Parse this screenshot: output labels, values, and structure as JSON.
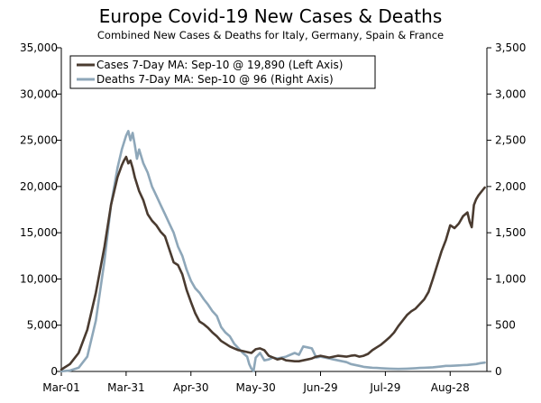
{
  "chart_data": {
    "type": "line",
    "title": "Europe Covid-19 New Cases & Deaths",
    "subtitle": "Combined New Cases & Deaths for Italy, Germany, Spain & France",
    "x_domain_days": [
      0,
      197
    ],
    "x_ticks": [
      {
        "day": 0,
        "label": "Mar-01"
      },
      {
        "day": 30,
        "label": "Mar-31"
      },
      {
        "day": 60,
        "label": "Apr-30"
      },
      {
        "day": 90,
        "label": "May-30"
      },
      {
        "day": 120,
        "label": "Jun-29"
      },
      {
        "day": 150,
        "label": "Jul-29"
      },
      {
        "day": 180,
        "label": "Aug-28"
      }
    ],
    "left_axis": {
      "ylim": [
        0,
        35000
      ],
      "ticks": [
        0,
        5000,
        10000,
        15000,
        20000,
        25000,
        30000,
        35000
      ],
      "tick_labels": [
        "0",
        "5,000",
        "10,000",
        "15,000",
        "20,000",
        "25,000",
        "30,000",
        "35,000"
      ]
    },
    "right_axis": {
      "ylim": [
        0,
        3500
      ],
      "ticks": [
        0,
        500,
        1000,
        1500,
        2000,
        2500,
        3000,
        3500
      ],
      "tick_labels": [
        "0",
        "500",
        "1,000",
        "1,500",
        "2,000",
        "2,500",
        "3,000",
        "3,500"
      ]
    },
    "legend_position": "top-left",
    "series": [
      {
        "name": "Cases 7-Day MA: Sep-10 @ 19,890 (Left Axis)",
        "axis": "left",
        "color": "#4a3b30",
        "x": [
          0,
          4,
          8,
          12,
          16,
          20,
          23,
          26,
          28,
          29,
          30,
          31,
          32,
          33,
          34,
          36,
          38,
          40,
          42,
          44,
          46,
          48,
          50,
          52,
          54,
          56,
          58,
          60,
          62,
          64,
          66,
          68,
          70,
          72,
          74,
          76,
          78,
          80,
          82,
          84,
          86,
          88,
          90,
          92,
          94,
          96,
          98,
          100,
          102,
          104,
          106,
          108,
          110,
          112,
          114,
          116,
          118,
          120,
          122,
          124,
          126,
          128,
          130,
          132,
          134,
          136,
          138,
          140,
          142,
          144,
          146,
          148,
          150,
          152,
          154,
          156,
          158,
          160,
          162,
          164,
          166,
          168,
          170,
          172,
          174,
          176,
          178,
          180,
          182,
          184,
          186,
          188,
          189,
          190,
          191,
          192,
          193,
          194,
          195,
          196
        ],
        "values": [
          200,
          800,
          2000,
          4500,
          8500,
          13500,
          18000,
          21000,
          22300,
          22800,
          23200,
          22500,
          22800,
          22000,
          21000,
          19500,
          18500,
          17000,
          16300,
          15800,
          15100,
          14600,
          13200,
          11800,
          11500,
          10500,
          8800,
          7500,
          6300,
          5400,
          5100,
          4700,
          4200,
          3800,
          3300,
          3000,
          2700,
          2500,
          2300,
          2200,
          2100,
          2000,
          2400,
          2500,
          2300,
          1700,
          1500,
          1300,
          1400,
          1200,
          1150,
          1100,
          1100,
          1200,
          1300,
          1400,
          1600,
          1700,
          1600,
          1500,
          1600,
          1700,
          1650,
          1600,
          1700,
          1750,
          1600,
          1700,
          1900,
          2300,
          2600,
          2900,
          3300,
          3700,
          4200,
          4900,
          5500,
          6100,
          6500,
          6800,
          7300,
          7800,
          8600,
          10000,
          11500,
          13000,
          14200,
          15800,
          15500,
          16000,
          16800,
          17200,
          16200,
          15600,
          18000,
          18600,
          19000,
          19300,
          19600,
          19890
        ]
      },
      {
        "name": "Deaths 7-Day MA: Sep-10 @ 96 (Right Axis)",
        "axis": "right",
        "color": "#8ea7b9",
        "x": [
          0,
          4,
          8,
          12,
          16,
          20,
          23,
          26,
          28,
          30,
          31,
          32,
          33,
          34,
          35,
          36,
          38,
          40,
          42,
          44,
          46,
          48,
          50,
          52,
          54,
          56,
          58,
          60,
          62,
          64,
          66,
          68,
          70,
          72,
          74,
          76,
          78,
          80,
          82,
          84,
          86,
          87,
          88,
          89,
          90,
          92,
          94,
          96,
          98,
          100,
          102,
          104,
          106,
          108,
          110,
          112,
          114,
          116,
          118,
          120,
          122,
          124,
          126,
          128,
          130,
          132,
          134,
          136,
          138,
          140,
          142,
          144,
          146,
          148,
          150,
          152,
          154,
          156,
          158,
          160,
          162,
          164,
          166,
          168,
          170,
          172,
          174,
          176,
          178,
          180,
          182,
          184,
          186,
          188,
          190,
          192,
          194,
          196
        ],
        "values": [
          2,
          10,
          40,
          160,
          550,
          1200,
          1800,
          2200,
          2400,
          2550,
          2600,
          2500,
          2580,
          2450,
          2300,
          2400,
          2250,
          2150,
          2000,
          1900,
          1800,
          1700,
          1600,
          1500,
          1350,
          1250,
          1100,
          980,
          900,
          850,
          780,
          720,
          650,
          600,
          480,
          420,
          380,
          300,
          250,
          200,
          160,
          80,
          30,
          5,
          150,
          200,
          120,
          130,
          150,
          140,
          150,
          160,
          180,
          200,
          180,
          270,
          260,
          250,
          150,
          160,
          150,
          140,
          130,
          120,
          110,
          100,
          80,
          70,
          60,
          50,
          45,
          40,
          38,
          35,
          32,
          30,
          28,
          27,
          28,
          30,
          32,
          35,
          38,
          40,
          42,
          45,
          50,
          55,
          60,
          60,
          62,
          65,
          68,
          70,
          75,
          80,
          90,
          96
        ]
      }
    ]
  }
}
